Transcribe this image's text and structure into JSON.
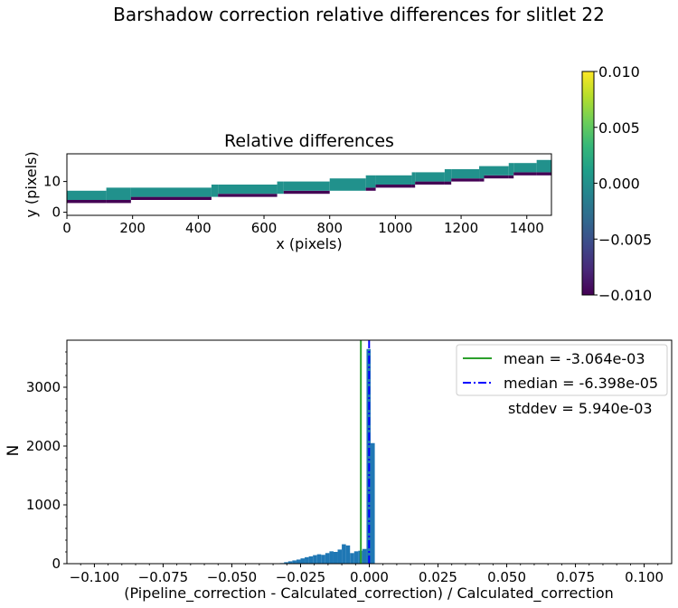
{
  "figure": {
    "suptitle": "Barshadow correction relative differences for slitlet 22"
  },
  "chart_data": [
    {
      "type": "heatmap",
      "title": "Relative differences",
      "xlabel": "x (pixels)",
      "ylabel": "y (pixels)",
      "xlim": [
        0,
        1475
      ],
      "ylim": [
        -1,
        19
      ],
      "xticks": [
        "0",
        "200",
        "400",
        "600",
        "800",
        "1000",
        "1200",
        "1400"
      ],
      "xtick_values": [
        0,
        200,
        400,
        600,
        800,
        1000,
        1200,
        1400
      ],
      "yticks": [
        "0",
        "10"
      ],
      "ytick_values": [
        0,
        10
      ],
      "colormap": "viridis",
      "color_main": "#21918c",
      "color_low": "#440154",
      "color_dark": "#3b528b",
      "band_segments": [
        {
          "x0": 0,
          "x1": 120,
          "y_bottom": 4,
          "y_top": 7,
          "low_edge": 3
        },
        {
          "x0": 120,
          "x1": 195,
          "y_bottom": 4,
          "y_top": 8,
          "low_edge": 3
        },
        {
          "x0": 195,
          "x1": 440,
          "y_bottom": 5,
          "y_top": 8,
          "low_edge": 4
        },
        {
          "x0": 440,
          "x1": 460,
          "y_bottom": 5,
          "y_top": 9,
          "low_edge": 5
        },
        {
          "x0": 460,
          "x1": 640,
          "y_bottom": 6,
          "y_top": 9,
          "low_edge": 5
        },
        {
          "x0": 640,
          "x1": 660,
          "y_bottom": 6,
          "y_top": 10,
          "low_edge": 6
        },
        {
          "x0": 660,
          "x1": 800,
          "y_bottom": 7,
          "y_top": 10,
          "low_edge": 6
        },
        {
          "x0": 800,
          "x1": 910,
          "y_bottom": 7,
          "y_top": 11,
          "low_edge": 7
        },
        {
          "x0": 910,
          "x1": 940,
          "y_bottom": 8,
          "y_top": 12,
          "low_edge": 7
        },
        {
          "x0": 940,
          "x1": 1050,
          "y_bottom": 9,
          "y_top": 12,
          "low_edge": 8
        },
        {
          "x0": 1050,
          "x1": 1060,
          "y_bottom": 9,
          "y_top": 13,
          "low_edge": 8
        },
        {
          "x0": 1060,
          "x1": 1150,
          "y_bottom": 10,
          "y_top": 13,
          "low_edge": 9
        },
        {
          "x0": 1150,
          "x1": 1170,
          "y_bottom": 10,
          "y_top": 14,
          "low_edge": 9
        },
        {
          "x0": 1170,
          "x1": 1255,
          "y_bottom": 11,
          "y_top": 14,
          "low_edge": 10
        },
        {
          "x0": 1255,
          "x1": 1270,
          "y_bottom": 11,
          "y_top": 15,
          "low_edge": 10
        },
        {
          "x0": 1270,
          "x1": 1345,
          "y_bottom": 12,
          "y_top": 15,
          "low_edge": 11
        },
        {
          "x0": 1345,
          "x1": 1360,
          "y_bottom": 12,
          "y_top": 16,
          "low_edge": 11
        },
        {
          "x0": 1360,
          "x1": 1430,
          "y_bottom": 13,
          "y_top": 16,
          "low_edge": 12
        },
        {
          "x0": 1430,
          "x1": 1475,
          "y_bottom": 13,
          "y_top": 17,
          "low_edge": 12
        }
      ]
    },
    {
      "type": "colorbar",
      "vmin": -0.01,
      "vmax": 0.01,
      "ticks": [
        "0.010",
        "0.005",
        "0.000",
        "−0.005",
        "−0.010"
      ],
      "tick_values": [
        0.01,
        0.005,
        0.0,
        -0.005,
        -0.01
      ],
      "colors": [
        "#440154",
        "#482878",
        "#3e4989",
        "#31688e",
        "#26828e",
        "#1f9e89",
        "#35b779",
        "#6ece58",
        "#b5de2b",
        "#fde725"
      ]
    },
    {
      "type": "bar",
      "subtype": "histogram",
      "xlabel": "(Pipeline_correction - Calculated_correction) / Calculated_correction",
      "ylabel": "N",
      "xlim": [
        -0.11,
        0.11
      ],
      "ylim": [
        0,
        3800
      ],
      "xticks": [
        "−0.100",
        "−0.075",
        "−0.050",
        "−0.025",
        "0.000",
        "0.025",
        "0.050",
        "0.075",
        "0.100"
      ],
      "xtick_values": [
        -0.1,
        -0.075,
        -0.05,
        -0.025,
        0.0,
        0.025,
        0.05,
        0.075,
        0.1
      ],
      "yticks": [
        "0",
        "1000",
        "2000",
        "3000"
      ],
      "ytick_values": [
        0,
        1000,
        2000,
        3000
      ],
      "bar_color": "#1f77b4",
      "bin_width": 0.0015,
      "bins": [
        {
          "left": -0.0325,
          "count": 10
        },
        {
          "left": -0.031,
          "count": 25
        },
        {
          "left": -0.0295,
          "count": 40
        },
        {
          "left": -0.028,
          "count": 55
        },
        {
          "left": -0.0265,
          "count": 70
        },
        {
          "left": -0.025,
          "count": 90
        },
        {
          "left": -0.0235,
          "count": 110
        },
        {
          "left": -0.022,
          "count": 125
        },
        {
          "left": -0.0205,
          "count": 145
        },
        {
          "left": -0.019,
          "count": 160
        },
        {
          "left": -0.0175,
          "count": 150
        },
        {
          "left": -0.016,
          "count": 180
        },
        {
          "left": -0.0145,
          "count": 210
        },
        {
          "left": -0.013,
          "count": 200
        },
        {
          "left": -0.0115,
          "count": 240
        },
        {
          "left": -0.01,
          "count": 330
        },
        {
          "left": -0.0085,
          "count": 310
        },
        {
          "left": -0.007,
          "count": 180
        },
        {
          "left": -0.0055,
          "count": 210
        },
        {
          "left": -0.004,
          "count": 220
        },
        {
          "left": -0.0025,
          "count": 250
        },
        {
          "left": -0.001,
          "count": 3650
        },
        {
          "left": 0.0005,
          "count": 2050
        }
      ],
      "lines": [
        {
          "name": "mean = -3.064e-03",
          "value": -0.003064,
          "color": "#2ca02c",
          "style": "solid"
        },
        {
          "name": "median = -6.398e-05",
          "value": -6.398e-05,
          "color": "#0000ff",
          "style": "dashdot"
        }
      ],
      "annotation": "stddev = 5.940e-03",
      "legend_position": "top-right"
    }
  ]
}
